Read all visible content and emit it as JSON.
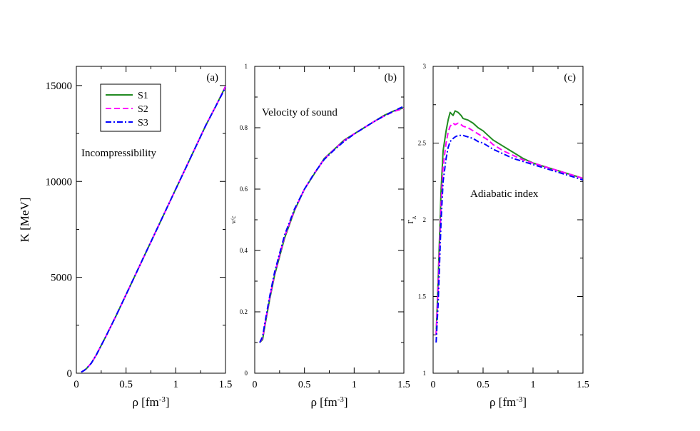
{
  "chart_data": [
    {
      "type": "line",
      "panel_label": "(a)",
      "annotation": "Incompressibility",
      "xlabel_base": "ρ [fm",
      "xlabel_exp": "-3",
      "xlabel_close": "]",
      "ylabel": "K [MeV]",
      "xlim": [
        0,
        1.5
      ],
      "ylim": [
        0,
        16000
      ],
      "xticks": [
        "0",
        "0.5",
        "1",
        "1.5"
      ],
      "yticks": [
        "0",
        "5000",
        "10000",
        "15000"
      ],
      "xtick_values": [
        0,
        0.5,
        1,
        1.5
      ],
      "ytick_values": [
        0,
        5000,
        10000,
        15000
      ],
      "legend": [
        "S1",
        "S2",
        "S3"
      ],
      "series": [
        {
          "name": "S1",
          "color": "#228B22",
          "dash": "solid",
          "x": [
            0.05,
            0.08,
            0.1,
            0.15,
            0.2,
            0.3,
            0.4,
            0.5,
            0.6,
            0.7,
            0.8,
            0.9,
            1.0,
            1.1,
            1.2,
            1.3,
            1.4,
            1.5
          ],
          "y": [
            60,
            150,
            230,
            520,
            950,
            1950,
            3000,
            4100,
            5200,
            6300,
            7400,
            8500,
            9600,
            10700,
            11800,
            12900,
            13900,
            14950
          ]
        },
        {
          "name": "S2",
          "color": "#FF00FF",
          "dash": "dashed",
          "x": [
            0.05,
            0.08,
            0.1,
            0.15,
            0.2,
            0.3,
            0.4,
            0.5,
            0.6,
            0.7,
            0.8,
            0.9,
            1.0,
            1.1,
            1.2,
            1.3,
            1.4,
            1.5
          ],
          "y": [
            60,
            150,
            230,
            520,
            950,
            1950,
            3000,
            4100,
            5200,
            6300,
            7400,
            8500,
            9600,
            10700,
            11800,
            12900,
            13900,
            14950
          ]
        },
        {
          "name": "S3",
          "color": "#0000FF",
          "dash": "dashdot",
          "x": [
            0.05,
            0.08,
            0.1,
            0.15,
            0.2,
            0.3,
            0.4,
            0.5,
            0.6,
            0.7,
            0.8,
            0.9,
            1.0,
            1.1,
            1.2,
            1.3,
            1.4,
            1.5
          ],
          "y": [
            60,
            150,
            230,
            520,
            950,
            1950,
            3000,
            4100,
            5200,
            6300,
            7400,
            8500,
            9600,
            10700,
            11800,
            12900,
            13900,
            14900
          ]
        }
      ]
    },
    {
      "type": "line",
      "panel_label": "(b)",
      "annotation": "Velocity of sound",
      "xlabel_base": "ρ [fm",
      "xlabel_exp": "-3",
      "xlabel_close": "]",
      "ylabel": "v/c",
      "xlim": [
        0,
        1.5
      ],
      "ylim": [
        0,
        1
      ],
      "xticks": [
        "0",
        "0.5",
        "1",
        "1.5"
      ],
      "yticks": [
        "0",
        "0.2",
        "0.4",
        "0.6",
        "0.8",
        "1"
      ],
      "xtick_values": [
        0,
        0.5,
        1,
        1.5
      ],
      "ytick_values": [
        0,
        0.2,
        0.4,
        0.6,
        0.8,
        1
      ],
      "series": [
        {
          "name": "S1",
          "color": "#228B22",
          "dash": "solid",
          "x": [
            0.05,
            0.08,
            0.1,
            0.15,
            0.2,
            0.3,
            0.4,
            0.5,
            0.6,
            0.7,
            0.8,
            0.9,
            1.0,
            1.1,
            1.2,
            1.3,
            1.4,
            1.5
          ],
          "y": [
            0.1,
            0.11,
            0.15,
            0.24,
            0.32,
            0.44,
            0.53,
            0.6,
            0.65,
            0.7,
            0.73,
            0.76,
            0.78,
            0.8,
            0.82,
            0.84,
            0.855,
            0.865
          ]
        },
        {
          "name": "S2",
          "color": "#FF00FF",
          "dash": "dashed",
          "x": [
            0.05,
            0.08,
            0.1,
            0.15,
            0.2,
            0.3,
            0.4,
            0.5,
            0.6,
            0.7,
            0.8,
            0.9,
            1.0,
            1.1,
            1.2,
            1.3,
            1.4,
            1.5
          ],
          "y": [
            0.1,
            0.115,
            0.155,
            0.245,
            0.325,
            0.445,
            0.532,
            0.6,
            0.652,
            0.698,
            0.73,
            0.758,
            0.78,
            0.8,
            0.82,
            0.838,
            0.853,
            0.863
          ]
        },
        {
          "name": "S3",
          "color": "#0000FF",
          "dash": "dashdot",
          "x": [
            0.05,
            0.08,
            0.1,
            0.15,
            0.2,
            0.3,
            0.4,
            0.5,
            0.6,
            0.7,
            0.8,
            0.9,
            1.0,
            1.1,
            1.2,
            1.3,
            1.4,
            1.5
          ],
          "y": [
            0.1,
            0.12,
            0.16,
            0.25,
            0.33,
            0.45,
            0.535,
            0.6,
            0.652,
            0.697,
            0.728,
            0.756,
            0.779,
            0.8,
            0.82,
            0.838,
            0.855,
            0.87
          ]
        }
      ]
    },
    {
      "type": "line",
      "panel_label": "(c)",
      "annotation": "Adiabatic index",
      "xlabel_base": "ρ [fm",
      "xlabel_exp": "-3",
      "xlabel_close": "]",
      "ylabel": "Γ",
      "ylabel_sub": "Λ",
      "xlim": [
        0,
        1.5
      ],
      "ylim": [
        1,
        3
      ],
      "xticks": [
        "0",
        "0.5",
        "1",
        "1.5"
      ],
      "yticks": [
        "1",
        "1.5",
        "2",
        "2.5",
        "3"
      ],
      "xtick_values": [
        0,
        0.5,
        1,
        1.5
      ],
      "ytick_values": [
        1,
        1.5,
        2,
        2.5,
        3
      ],
      "series": [
        {
          "name": "S1",
          "color": "#228B22",
          "dash": "solid",
          "x": [
            0.03,
            0.05,
            0.08,
            0.1,
            0.13,
            0.15,
            0.17,
            0.2,
            0.22,
            0.25,
            0.28,
            0.3,
            0.35,
            0.4,
            0.45,
            0.5,
            0.55,
            0.6,
            0.7,
            0.8,
            0.9,
            1.0,
            1.1,
            1.2,
            1.3,
            1.4,
            1.5
          ],
          "y": [
            1.25,
            1.6,
            2.2,
            2.45,
            2.58,
            2.65,
            2.7,
            2.68,
            2.71,
            2.7,
            2.68,
            2.66,
            2.65,
            2.63,
            2.6,
            2.58,
            2.55,
            2.52,
            2.48,
            2.44,
            2.4,
            2.37,
            2.35,
            2.33,
            2.31,
            2.29,
            2.27
          ]
        },
        {
          "name": "S2",
          "color": "#FF00FF",
          "dash": "dashed",
          "x": [
            0.03,
            0.05,
            0.08,
            0.1,
            0.13,
            0.15,
            0.17,
            0.2,
            0.22,
            0.25,
            0.28,
            0.3,
            0.35,
            0.4,
            0.45,
            0.5,
            0.55,
            0.6,
            0.7,
            0.8,
            0.9,
            1.0,
            1.1,
            1.2,
            1.3,
            1.4,
            1.5
          ],
          "y": [
            1.25,
            1.55,
            2.1,
            2.35,
            2.5,
            2.57,
            2.61,
            2.63,
            2.62,
            2.63,
            2.62,
            2.61,
            2.6,
            2.58,
            2.56,
            2.54,
            2.52,
            2.49,
            2.45,
            2.42,
            2.39,
            2.37,
            2.35,
            2.33,
            2.31,
            2.29,
            2.27
          ]
        },
        {
          "name": "S3",
          "color": "#0000FF",
          "dash": "dashdot",
          "x": [
            0.03,
            0.05,
            0.08,
            0.1,
            0.13,
            0.15,
            0.17,
            0.2,
            0.22,
            0.25,
            0.28,
            0.3,
            0.35,
            0.4,
            0.45,
            0.5,
            0.55,
            0.6,
            0.7,
            0.8,
            0.9,
            1.0,
            1.1,
            1.2,
            1.3,
            1.4,
            1.5
          ],
          "y": [
            1.2,
            1.45,
            2.0,
            2.25,
            2.4,
            2.47,
            2.51,
            2.53,
            2.54,
            2.55,
            2.55,
            2.55,
            2.54,
            2.53,
            2.51,
            2.5,
            2.48,
            2.46,
            2.43,
            2.4,
            2.38,
            2.36,
            2.34,
            2.32,
            2.3,
            2.28,
            2.26
          ]
        }
      ]
    }
  ]
}
